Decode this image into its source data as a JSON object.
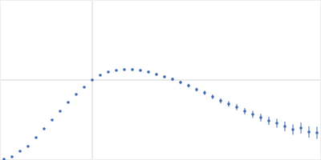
{
  "chart_data": {
    "type": "scatter",
    "x": [
      5,
      15,
      25,
      35,
      45,
      55,
      65,
      75,
      85,
      95,
      105,
      115,
      125,
      135,
      145,
      155,
      165,
      175,
      185,
      195,
      205,
      215,
      225,
      235,
      245,
      255,
      265,
      275,
      285,
      295,
      305,
      315,
      325,
      335,
      345,
      355,
      365,
      375,
      385,
      395
    ],
    "series": [
      {
        "color": "#3a67b5",
        "marker": "circle",
        "values": [
          1,
          4,
          11,
          17,
          28,
          39,
          50,
          61,
          72,
          82,
          91,
          100,
          106,
          110,
          112,
          113,
          113,
          112,
          110,
          107,
          104,
          101,
          97,
          93,
          88,
          84,
          79,
          74,
          70,
          66,
          61,
          57,
          53,
          49,
          46,
          42,
          38,
          40,
          35,
          34
        ],
        "errors": [
          0.3,
          0.3,
          0.4,
          0.4,
          0.5,
          0.5,
          0.6,
          0.6,
          0.7,
          0.7,
          0.8,
          0.8,
          0.9,
          1,
          1,
          1.1,
          1.2,
          1.3,
          1.4,
          1.5,
          1.6,
          1.8,
          2,
          2.2,
          2.4,
          2.6,
          2.9,
          3.2,
          3.5,
          3.8,
          4.1,
          4.4,
          4.8,
          5.2,
          5.6,
          6,
          6.4,
          6.8,
          7.2,
          7.6
        ]
      }
    ],
    "xlim": [
      0,
      400
    ],
    "ylim": [
      0,
      200
    ],
    "xticks": [
      115
    ],
    "yticks": [
      100
    ],
    "grid": true,
    "tick_labels": false
  }
}
